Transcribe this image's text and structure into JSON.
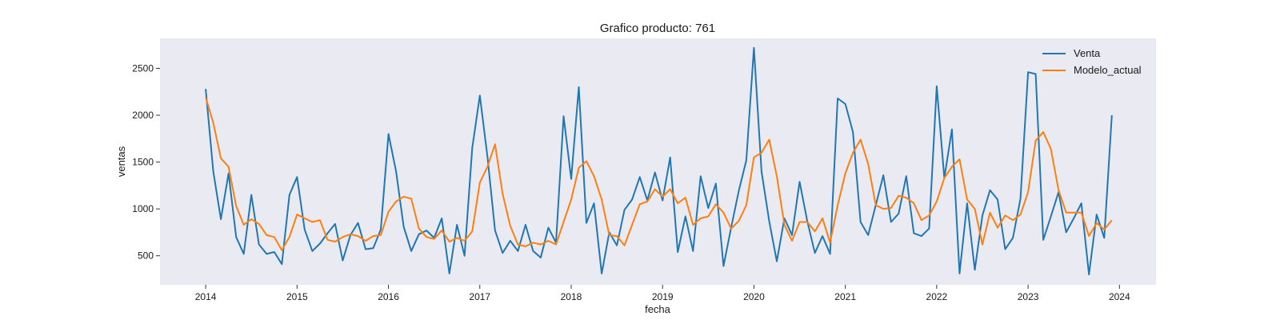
{
  "chart_data": {
    "type": "line",
    "title": "Grafico producto: 761",
    "xlabel": "fecha",
    "ylabel": "ventas",
    "xlim": [
      2013.5,
      2024.4
    ],
    "ylim": [
      190,
      2820
    ],
    "x_ticks": [
      2014,
      2015,
      2016,
      2017,
      2018,
      2019,
      2020,
      2021,
      2022,
      2023,
      2024
    ],
    "x_tick_labels": [
      "2014",
      "2015",
      "2016",
      "2017",
      "2018",
      "2019",
      "2020",
      "2021",
      "2022",
      "2023",
      "2024"
    ],
    "y_ticks": [
      500,
      1000,
      1500,
      2000,
      2500
    ],
    "y_tick_labels": [
      "500",
      "1000",
      "1500",
      "2000",
      "2500"
    ],
    "grid": false,
    "background": "#eaeaf2",
    "legend_position": "top-right",
    "x_start_year": 2014,
    "x_step": 0.0833333,
    "series": [
      {
        "name": "Venta",
        "color": "#1f77b4",
        "values": [
          2280,
          1400,
          890,
          1380,
          700,
          520,
          1150,
          620,
          520,
          540,
          410,
          1150,
          1340,
          780,
          550,
          630,
          740,
          840,
          450,
          720,
          850,
          570,
          580,
          780,
          1800,
          1400,
          810,
          550,
          730,
          770,
          690,
          900,
          310,
          830,
          500,
          1650,
          2210,
          1560,
          770,
          530,
          660,
          550,
          830,
          550,
          480,
          800,
          640,
          1990,
          1320,
          2300,
          850,
          1060,
          310,
          750,
          610,
          990,
          1100,
          1340,
          1090,
          1390,
          1090,
          1550,
          540,
          920,
          550,
          1350,
          1010,
          1270,
          390,
          800,
          1190,
          1520,
          2720,
          1400,
          870,
          440,
          900,
          720,
          1290,
          870,
          530,
          710,
          520,
          2180,
          2120,
          1820,
          860,
          720,
          1040,
          1360,
          860,
          950,
          1350,
          740,
          710,
          790,
          2310,
          1330,
          1850,
          310,
          1060,
          350,
          930,
          1200,
          1100,
          570,
          690,
          1110,
          2460,
          2440,
          670,
          920,
          1180,
          750,
          900,
          1060,
          300,
          940,
          690,
          2000
        ]
      },
      {
        "name": "Modelo_actual",
        "color": "#ff7f0e",
        "values": [
          2190,
          1920,
          1540,
          1450,
          1030,
          830,
          890,
          840,
          720,
          700,
          560,
          700,
          940,
          900,
          860,
          880,
          670,
          650,
          700,
          730,
          710,
          660,
          710,
          720,
          970,
          1080,
          1130,
          1110,
          790,
          700,
          680,
          770,
          650,
          690,
          660,
          760,
          1280,
          1450,
          1690,
          1160,
          820,
          620,
          600,
          640,
          620,
          660,
          620,
          860,
          1100,
          1440,
          1510,
          1350,
          1100,
          720,
          710,
          610,
          830,
          1050,
          1080,
          1210,
          1130,
          1210,
          1060,
          1120,
          830,
          900,
          920,
          1050,
          960,
          790,
          870,
          1040,
          1550,
          1600,
          1740,
          1350,
          830,
          660,
          860,
          860,
          760,
          900,
          640,
          1040,
          1380,
          1600,
          1740,
          1480,
          1040,
          1000,
          1010,
          1140,
          1120,
          1060,
          880,
          930,
          1080,
          1330,
          1450,
          1530,
          1100,
          1000,
          620,
          960,
          800,
          930,
          880,
          940,
          1180,
          1730,
          1820,
          1640,
          1200,
          960,
          960,
          960,
          710,
          850,
          780,
          880
        ]
      }
    ]
  }
}
